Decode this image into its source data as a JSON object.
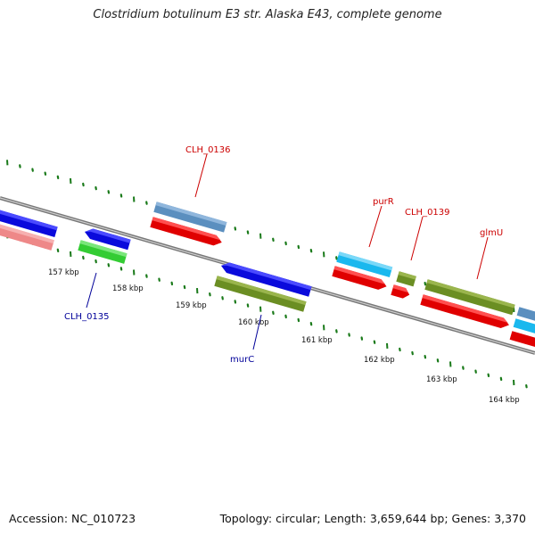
{
  "title": "Clostridium botulinum E3 str. Alaska E43, complete genome",
  "footer": {
    "accession": "Accession: NC_010723",
    "summary": "Topology: circular; Length: 3,659,644 bp; Genes: 3,370"
  },
  "ticks": [
    "157 kbp",
    "158 kbp",
    "159 kbp",
    "160 kbp",
    "161 kbp",
    "162 kbp",
    "163 kbp",
    "164 kbp"
  ],
  "gene_labels": [
    {
      "text": "CLH_0136",
      "color": "#cc0000"
    },
    {
      "text": "purR",
      "color": "#cc0000"
    },
    {
      "text": "CLH_0139",
      "color": "#cc0000"
    },
    {
      "text": "glmU",
      "color": "#cc0000"
    },
    {
      "text": "CLH_0135",
      "color": "#000099"
    },
    {
      "text": "murC",
      "color": "#000099"
    }
  ],
  "colors": {
    "backbone": "#888888",
    "tick": "#1a7a1a",
    "forward_cds": "#1f4e9a",
    "reverse_cds": "#e00000",
    "blue": "#0a0adc",
    "steelblue": "#5b8fbf",
    "cyan": "#1ab8ee",
    "olive": "#6b8e23",
    "green": "#33cc33",
    "pink": "#ee8888"
  }
}
